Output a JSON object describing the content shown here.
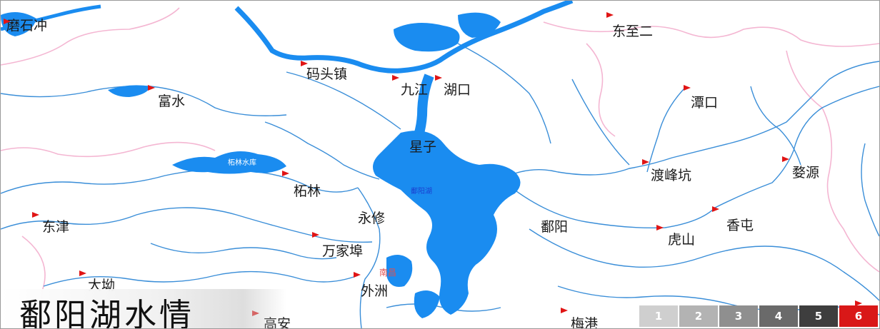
{
  "title": "鄱阳湖水情",
  "places": [
    {
      "id": "zhishichong",
      "label": "磨石冲"
    },
    {
      "id": "dongzhier",
      "label": "东至二"
    },
    {
      "id": "matouzhen",
      "label": "码头镇"
    },
    {
      "id": "jiujiang",
      "label": "九江"
    },
    {
      "id": "hukou",
      "label": "湖口"
    },
    {
      "id": "fushui",
      "label": "富水"
    },
    {
      "id": "tankou",
      "label": "潭口"
    },
    {
      "id": "xingzi",
      "label": "星子"
    },
    {
      "id": "dujiangkeng",
      "label": "渡峰坑"
    },
    {
      "id": "wuyuan",
      "label": "婺源"
    },
    {
      "id": "zhelin",
      "label": "柘林"
    },
    {
      "id": "dongjin",
      "label": "东津"
    },
    {
      "id": "yongxiu",
      "label": "永修"
    },
    {
      "id": "poyang",
      "label": "鄱阳"
    },
    {
      "id": "xiangtun",
      "label": "香屯"
    },
    {
      "id": "wanjiabu",
      "label": "万家埠"
    },
    {
      "id": "hushan",
      "label": "虎山"
    },
    {
      "id": "dafang",
      "label": "大坳"
    },
    {
      "id": "waizhou",
      "label": "外洲"
    },
    {
      "id": "gaoan",
      "label": "高安"
    },
    {
      "id": "meigang",
      "label": "梅港"
    }
  ],
  "lake_label": "鄱阳湖",
  "reservoir_label": "柘林水库",
  "city_label": "南昌",
  "colors": {
    "water": "#1a8cf0",
    "river": "#3a8ed8",
    "border": "#f4b6d2",
    "flag": "#e01515",
    "active": "#d91818"
  },
  "pager": {
    "pages": [
      {
        "label": "1",
        "color": "#cfcfcf"
      },
      {
        "label": "2",
        "color": "#b3b3b3"
      },
      {
        "label": "3",
        "color": "#8f8f8f"
      },
      {
        "label": "4",
        "color": "#6a6a6a"
      },
      {
        "label": "5",
        "color": "#3e3e3e"
      },
      {
        "label": "6",
        "color": "#d91818"
      }
    ],
    "active": 6
  }
}
